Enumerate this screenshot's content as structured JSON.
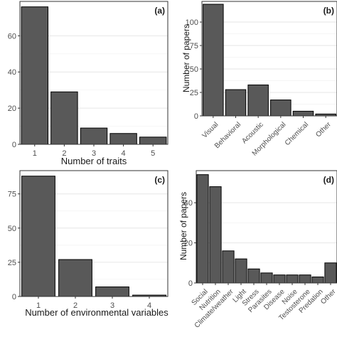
{
  "chart_data": [
    {
      "panel_label": "(a)",
      "type": "bar",
      "categories": [
        "1",
        "2",
        "3",
        "4",
        "5"
      ],
      "values": [
        76,
        29,
        9,
        6,
        4
      ],
      "xlabel": "Number of traits",
      "ylabel": "",
      "ylim": [
        0,
        79
      ],
      "yticks": [
        "0",
        "20",
        "40",
        "60"
      ],
      "grid": true,
      "xtick_rotation": 0
    },
    {
      "panel_label": "(b)",
      "type": "bar",
      "categories": [
        "Visual",
        "Behavioral",
        "Acoustic",
        "Morphological",
        "Chemical",
        "Other"
      ],
      "values": [
        119,
        28,
        33,
        17,
        5,
        2
      ],
      "xlabel": "",
      "ylabel": "Number of papers",
      "ylim": [
        0,
        122
      ],
      "yticks": [
        "0",
        "25",
        "50",
        "75",
        "100"
      ],
      "grid": true,
      "xtick_rotation": -45
    },
    {
      "panel_label": "(c)",
      "type": "bar",
      "categories": [
        "1",
        "2",
        "3",
        "4"
      ],
      "values": [
        88,
        27,
        7,
        1
      ],
      "xlabel": "Number of environmental variables",
      "ylabel": "",
      "ylim": [
        0,
        92
      ],
      "yticks": [
        "0",
        "25",
        "50",
        "75"
      ],
      "grid": true,
      "xtick_rotation": 0
    },
    {
      "panel_label": "(d)",
      "type": "bar",
      "categories": [
        "Social",
        "Nutrition",
        "Climate/weather",
        "Light",
        "Stress",
        "Parasites",
        "Disease",
        "Noise",
        "Testosterone",
        "Predation",
        "Other"
      ],
      "values": [
        54,
        48,
        16,
        12,
        7,
        5,
        4,
        4,
        4,
        3,
        10
      ],
      "xlabel": "",
      "ylabel": "Number of papers",
      "ylim": [
        0,
        56
      ],
      "yticks": [
        "0",
        "20",
        "40"
      ],
      "grid": true,
      "xtick_rotation": -45
    }
  ],
  "colors": {
    "bar_fill": "#595959",
    "bar_stroke": "#000000",
    "grid": "#e6e6e6",
    "panel_border": "#333333",
    "text": "#1a1a1a"
  }
}
